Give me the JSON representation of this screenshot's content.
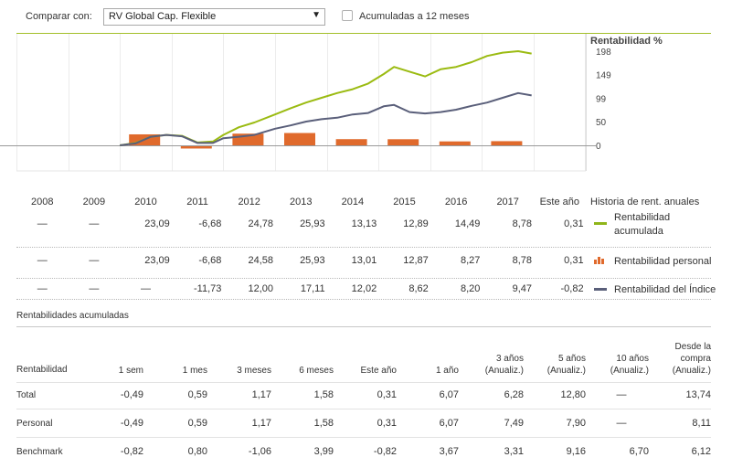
{
  "header": {
    "compare_label": "Comparar con:",
    "fund_selected": "RV Global Cap. Flexible",
    "dropdown_icon": "triangle-down",
    "accumulate_label": "Acumuladas a 12 meses",
    "accumulate_checked": false
  },
  "chart_data": {
    "type": "bar+line",
    "ylabel": "Rentabilidad %",
    "y_ticks": [
      198,
      149,
      99,
      50,
      0
    ],
    "ylim": [
      -9,
      210
    ],
    "bar_series": {
      "name": "Rentabilidad personal",
      "categories": [
        "2010",
        "2011",
        "2012",
        "2013",
        "2014",
        "2015",
        "2016",
        "2017"
      ],
      "values": [
        23.09,
        -6.68,
        24.58,
        25.93,
        13.01,
        12.87,
        8.27,
        8.78
      ]
    },
    "line_series": [
      {
        "name": "Rentabilidad acumulada",
        "color": "#9bbb12",
        "x": [
          2010.0,
          2010.3,
          2010.6,
          2010.9,
          2011.2,
          2011.5,
          2011.8,
          2012.0,
          2012.3,
          2012.6,
          2013.0,
          2013.3,
          2013.6,
          2013.9,
          2014.2,
          2014.5,
          2014.8,
          2015.1,
          2015.3,
          2015.6,
          2015.9,
          2016.2,
          2016.5,
          2016.8,
          2017.1,
          2017.4,
          2017.7,
          2017.96
        ],
        "values": [
          0,
          5,
          18,
          22,
          20,
          6,
          8,
          22,
          38,
          48,
          65,
          78,
          90,
          100,
          110,
          118,
          130,
          150,
          165,
          155,
          145,
          160,
          165,
          175,
          188,
          195,
          198,
          193
        ]
      },
      {
        "name": "Rentabilidad del Índice",
        "color": "#5a5f7a",
        "x": [
          2010.0,
          2010.3,
          2010.6,
          2010.9,
          2011.2,
          2011.5,
          2011.8,
          2012.0,
          2012.3,
          2012.6,
          2013.0,
          2013.3,
          2013.6,
          2013.9,
          2014.2,
          2014.5,
          2014.8,
          2015.1,
          2015.3,
          2015.6,
          2015.9,
          2016.2,
          2016.5,
          2016.8,
          2017.1,
          2017.4,
          2017.7,
          2017.96
        ],
        "values": [
          0,
          4,
          18,
          22,
          19,
          5,
          5,
          15,
          18,
          22,
          35,
          42,
          50,
          55,
          58,
          65,
          68,
          82,
          85,
          70,
          67,
          70,
          75,
          83,
          90,
          100,
          110,
          105
        ]
      }
    ]
  },
  "annual": {
    "years": [
      "2008",
      "2009",
      "2010",
      "2011",
      "2012",
      "2013",
      "2014",
      "2015",
      "2016",
      "2017",
      "Este año"
    ],
    "history_title": "Historia de rent. anuales",
    "rows": [
      {
        "legend": "Rentabilidad acumulada",
        "legend_line1": "Rentabilidad",
        "legend_line2": "acumulada",
        "values": [
          "—",
          "—",
          "23,09",
          "-6,68",
          "24,78",
          "25,93",
          "13,13",
          "12,89",
          "14,49",
          "8,78",
          "0,31"
        ]
      },
      {
        "legend": "Rentabilidad personal",
        "values": [
          "—",
          "—",
          "23,09",
          "-6,68",
          "24,58",
          "25,93",
          "13,01",
          "12,87",
          "8,27",
          "8,78",
          "0,31"
        ]
      },
      {
        "legend": "Rentabilidad del Índice",
        "values": [
          "—",
          "—",
          "—",
          "-11,73",
          "12,00",
          "17,11",
          "12,02",
          "8,62",
          "8,20",
          "9,47",
          "-0,82"
        ]
      }
    ]
  },
  "accumulated": {
    "title": "Rentabilidades acumuladas",
    "row_header": "Rentabilidad",
    "columns": [
      {
        "l1": "",
        "l2": "",
        "l3": "1 sem"
      },
      {
        "l1": "",
        "l2": "",
        "l3": "1 mes"
      },
      {
        "l1": "",
        "l2": "",
        "l3": "3 meses"
      },
      {
        "l1": "",
        "l2": "",
        "l3": "6 meses"
      },
      {
        "l1": "",
        "l2": "",
        "l3": "Este año"
      },
      {
        "l1": "",
        "l2": "",
        "l3": "1 año"
      },
      {
        "l1": "",
        "l2": "3 años",
        "l3": "(Anualiz.)"
      },
      {
        "l1": "",
        "l2": "5 años",
        "l3": "(Anualiz.)"
      },
      {
        "l1": "",
        "l2": "10 años",
        "l3": "(Anualiz.)"
      },
      {
        "l1": "Desde la",
        "l2": "compra",
        "l3": "(Anualiz.)"
      }
    ],
    "rows": [
      {
        "label": "Total",
        "values": [
          "-0,49",
          "0,59",
          "1,17",
          "1,58",
          "0,31",
          "6,07",
          "6,28",
          "12,80",
          "—",
          "13,74"
        ]
      },
      {
        "label": "Personal",
        "values": [
          "-0,49",
          "0,59",
          "1,17",
          "1,58",
          "0,31",
          "6,07",
          "7,49",
          "7,90",
          "—",
          "8,11"
        ]
      },
      {
        "label": "Benchmark",
        "values": [
          "-0,82",
          "0,80",
          "-1,06",
          "3,99",
          "-0,82",
          "3,67",
          "3,31",
          "9,16",
          "6,70",
          "6,12"
        ]
      }
    ]
  }
}
